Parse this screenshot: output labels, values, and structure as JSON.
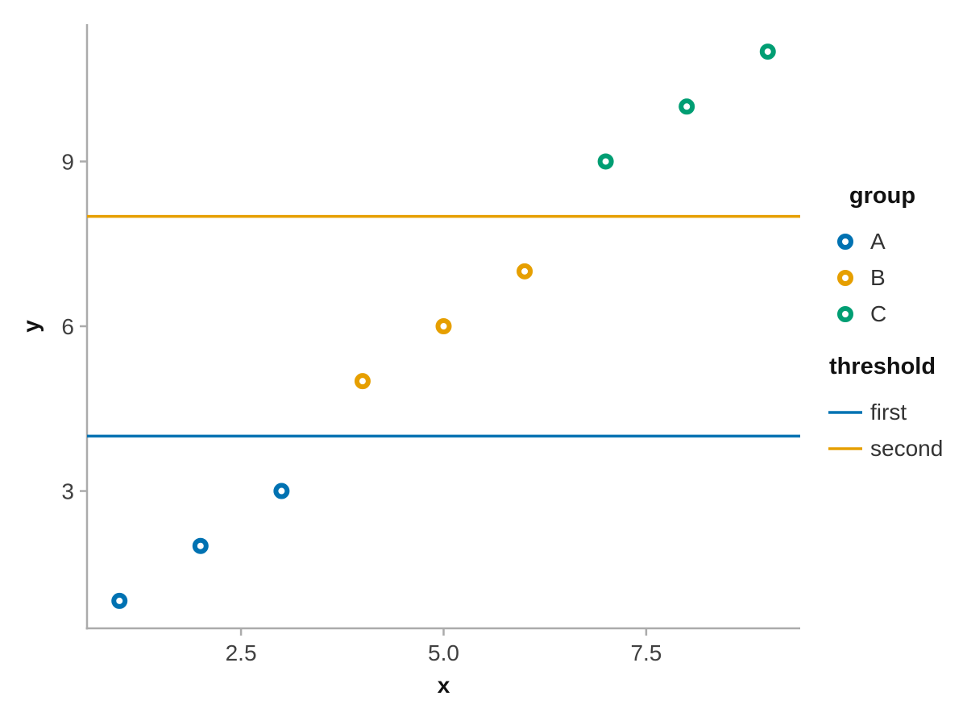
{
  "chart_data": {
    "type": "scatter",
    "title": "",
    "xlabel": "x",
    "ylabel": "y",
    "xlim": [
      0.6,
      9.4
    ],
    "ylim": [
      0.5,
      11.5
    ],
    "x_ticks": [
      2.5,
      5.0,
      7.5
    ],
    "x_tick_labels": [
      "2.5",
      "5.0",
      "7.5"
    ],
    "y_ticks": [
      3,
      6,
      9
    ],
    "y_tick_labels": [
      "3",
      "6",
      "9"
    ],
    "grid": "off",
    "legend_position": "right",
    "series": [
      {
        "name": "A",
        "color": "#0072B2",
        "points": [
          [
            1,
            1
          ],
          [
            2,
            2
          ],
          [
            3,
            3
          ]
        ]
      },
      {
        "name": "B",
        "color": "#E69F00",
        "points": [
          [
            4,
            5
          ],
          [
            5,
            6
          ],
          [
            6,
            7
          ]
        ]
      },
      {
        "name": "C",
        "color": "#009E73",
        "points": [
          [
            7,
            9
          ],
          [
            8,
            10
          ],
          [
            9,
            11
          ]
        ]
      }
    ],
    "thresholds": [
      {
        "name": "first",
        "color": "#0072B2",
        "y": 4
      },
      {
        "name": "second",
        "color": "#E69F00",
        "y": 8
      }
    ],
    "legend": {
      "group_title": "group",
      "threshold_title": "threshold"
    },
    "colors": {
      "axis": "#ababab",
      "tick_text": "#404040",
      "title_text": "#111111"
    }
  }
}
